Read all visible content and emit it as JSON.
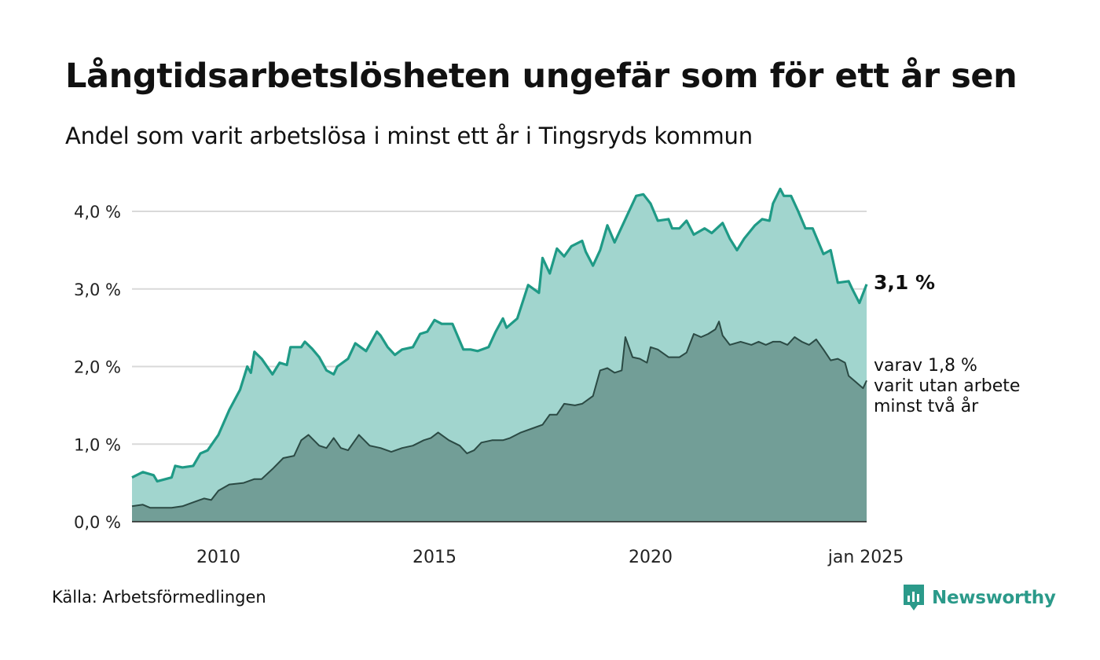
{
  "header": {
    "title": "Långtidsarbetslösheten ungefär som för ett år sen",
    "subtitle": "Andel som varit arbetslösa i minst ett år i Tingsryds kommun"
  },
  "footer": {
    "source": "Källa: Arbetsförmedlingen",
    "brand": "Newsworthy"
  },
  "colors": {
    "line_top": "#1f9a86",
    "area_top": "#a1d5ce",
    "line_bottom": "#2b4a44",
    "area_bottom": "#729e97",
    "grid": "#d9d9d9",
    "brand": "#2b9a8a"
  },
  "chart_data": {
    "type": "area",
    "xlim": [
      "2008-01",
      "2025-01"
    ],
    "ylim": [
      0,
      4.0
    ],
    "y_ticks": [
      "0,0 %",
      "1,0 %",
      "2,0 %",
      "3,0 %",
      "4,0 %"
    ],
    "x_ticks": [
      "2010",
      "2015",
      "2020",
      "jan 2025"
    ],
    "grid": true,
    "end_labels": {
      "top": "3,1 %",
      "bottom": [
        "varav 1,8 %",
        "varit utan arbete",
        "minst två år"
      ]
    },
    "series": [
      {
        "points": [
          [
            "2008-01",
            0.57
          ],
          [
            "2008-04",
            0.64
          ],
          [
            "2008-07",
            0.6
          ],
          [
            "2008-08",
            0.52
          ],
          [
            "2008-12",
            0.57
          ],
          [
            "2009-01",
            0.72
          ],
          [
            "2009-03",
            0.7
          ],
          [
            "2009-06",
            0.72
          ],
          [
            "2009-08",
            0.88
          ],
          [
            "2009-10",
            0.92
          ],
          [
            "2010-01",
            1.12
          ],
          [
            "2010-04",
            1.44
          ],
          [
            "2010-07",
            1.7
          ],
          [
            "2010-09",
            2.0
          ],
          [
            "2010-10",
            1.92
          ],
          [
            "2010-11",
            2.19
          ],
          [
            "2011-01",
            2.1
          ],
          [
            "2011-04",
            1.9
          ],
          [
            "2011-06",
            2.05
          ],
          [
            "2011-08",
            2.02
          ],
          [
            "2011-09",
            2.25
          ],
          [
            "2011-12",
            2.25
          ],
          [
            "2012-01",
            2.32
          ],
          [
            "2012-03",
            2.23
          ],
          [
            "2012-05",
            2.12
          ],
          [
            "2012-07",
            1.95
          ],
          [
            "2012-09",
            1.9
          ],
          [
            "2012-10",
            2.0
          ],
          [
            "2013-01",
            2.1
          ],
          [
            "2013-03",
            2.3
          ],
          [
            "2013-06",
            2.2
          ],
          [
            "2013-09",
            2.45
          ],
          [
            "2013-10",
            2.4
          ],
          [
            "2013-12",
            2.25
          ],
          [
            "2014-02",
            2.15
          ],
          [
            "2014-04",
            2.22
          ],
          [
            "2014-07",
            2.25
          ],
          [
            "2014-09",
            2.42
          ],
          [
            "2014-11",
            2.45
          ],
          [
            "2015-01",
            2.6
          ],
          [
            "2015-03",
            2.55
          ],
          [
            "2015-06",
            2.55
          ],
          [
            "2015-09",
            2.22
          ],
          [
            "2015-11",
            2.22
          ],
          [
            "2016-01",
            2.2
          ],
          [
            "2016-04",
            2.25
          ],
          [
            "2016-06",
            2.45
          ],
          [
            "2016-08",
            2.62
          ],
          [
            "2016-09",
            2.5
          ],
          [
            "2016-12",
            2.62
          ],
          [
            "2017-03",
            3.05
          ],
          [
            "2017-06",
            2.95
          ],
          [
            "2017-07",
            3.4
          ],
          [
            "2017-09",
            3.2
          ],
          [
            "2017-11",
            3.52
          ],
          [
            "2018-01",
            3.42
          ],
          [
            "2018-03",
            3.55
          ],
          [
            "2018-06",
            3.62
          ],
          [
            "2018-07",
            3.48
          ],
          [
            "2018-09",
            3.3
          ],
          [
            "2018-11",
            3.5
          ],
          [
            "2019-01",
            3.82
          ],
          [
            "2019-03",
            3.6
          ],
          [
            "2019-06",
            3.9
          ],
          [
            "2019-09",
            4.2
          ],
          [
            "2019-11",
            4.22
          ],
          [
            "2020-01",
            4.1
          ],
          [
            "2020-03",
            3.88
          ],
          [
            "2020-06",
            3.9
          ],
          [
            "2020-07",
            3.78
          ],
          [
            "2020-09",
            3.78
          ],
          [
            "2020-11",
            3.88
          ],
          [
            "2021-01",
            3.7
          ],
          [
            "2021-04",
            3.78
          ],
          [
            "2021-06",
            3.72
          ],
          [
            "2021-09",
            3.85
          ],
          [
            "2021-11",
            3.65
          ],
          [
            "2022-01",
            3.5
          ],
          [
            "2022-03",
            3.65
          ],
          [
            "2022-06",
            3.82
          ],
          [
            "2022-08",
            3.9
          ],
          [
            "2022-10",
            3.88
          ],
          [
            "2022-11",
            4.1
          ],
          [
            "2023-01",
            4.29
          ],
          [
            "2023-02",
            4.2
          ],
          [
            "2023-04",
            4.2
          ],
          [
            "2023-06",
            4.0
          ],
          [
            "2023-08",
            3.78
          ],
          [
            "2023-10",
            3.78
          ],
          [
            "2024-01",
            3.45
          ],
          [
            "2024-03",
            3.5
          ],
          [
            "2024-05",
            3.08
          ],
          [
            "2024-08",
            3.1
          ],
          [
            "2024-09",
            3.0
          ],
          [
            "2024-11",
            2.82
          ],
          [
            "2025-01",
            3.06
          ]
        ]
      },
      {
        "points": [
          [
            "2008-01",
            0.2
          ],
          [
            "2008-04",
            0.22
          ],
          [
            "2008-06",
            0.18
          ],
          [
            "2008-12",
            0.18
          ],
          [
            "2009-03",
            0.2
          ],
          [
            "2009-06",
            0.25
          ],
          [
            "2009-09",
            0.3
          ],
          [
            "2009-11",
            0.28
          ],
          [
            "2010-01",
            0.4
          ],
          [
            "2010-04",
            0.48
          ],
          [
            "2010-08",
            0.5
          ],
          [
            "2010-11",
            0.55
          ],
          [
            "2011-01",
            0.55
          ],
          [
            "2011-04",
            0.68
          ],
          [
            "2011-07",
            0.82
          ],
          [
            "2011-10",
            0.85
          ],
          [
            "2011-12",
            1.05
          ],
          [
            "2012-02",
            1.12
          ],
          [
            "2012-05",
            0.98
          ],
          [
            "2012-07",
            0.95
          ],
          [
            "2012-09",
            1.08
          ],
          [
            "2012-11",
            0.95
          ],
          [
            "2013-01",
            0.92
          ],
          [
            "2013-04",
            1.12
          ],
          [
            "2013-07",
            0.98
          ],
          [
            "2013-10",
            0.95
          ],
          [
            "2014-01",
            0.9
          ],
          [
            "2014-04",
            0.95
          ],
          [
            "2014-07",
            0.98
          ],
          [
            "2014-10",
            1.05
          ],
          [
            "2014-12",
            1.08
          ],
          [
            "2015-02",
            1.15
          ],
          [
            "2015-05",
            1.05
          ],
          [
            "2015-08",
            0.98
          ],
          [
            "2015-10",
            0.88
          ],
          [
            "2015-12",
            0.92
          ],
          [
            "2016-02",
            1.02
          ],
          [
            "2016-05",
            1.05
          ],
          [
            "2016-08",
            1.05
          ],
          [
            "2016-10",
            1.08
          ],
          [
            "2017-01",
            1.15
          ],
          [
            "2017-04",
            1.2
          ],
          [
            "2017-07",
            1.25
          ],
          [
            "2017-09",
            1.38
          ],
          [
            "2017-11",
            1.38
          ],
          [
            "2018-01",
            1.52
          ],
          [
            "2018-04",
            1.5
          ],
          [
            "2018-06",
            1.52
          ],
          [
            "2018-09",
            1.62
          ],
          [
            "2018-11",
            1.95
          ],
          [
            "2019-01",
            1.98
          ],
          [
            "2019-03",
            1.92
          ],
          [
            "2019-05",
            1.95
          ],
          [
            "2019-06",
            2.38
          ],
          [
            "2019-08",
            2.12
          ],
          [
            "2019-10",
            2.1
          ],
          [
            "2019-12",
            2.05
          ],
          [
            "2020-01",
            2.25
          ],
          [
            "2020-03",
            2.22
          ],
          [
            "2020-06",
            2.12
          ],
          [
            "2020-09",
            2.12
          ],
          [
            "2020-11",
            2.18
          ],
          [
            "2021-01",
            2.42
          ],
          [
            "2021-03",
            2.38
          ],
          [
            "2021-05",
            2.42
          ],
          [
            "2021-07",
            2.48
          ],
          [
            "2021-08",
            2.58
          ],
          [
            "2021-09",
            2.4
          ],
          [
            "2021-11",
            2.28
          ],
          [
            "2022-02",
            2.32
          ],
          [
            "2022-05",
            2.28
          ],
          [
            "2022-07",
            2.32
          ],
          [
            "2022-09",
            2.28
          ],
          [
            "2022-11",
            2.32
          ],
          [
            "2023-01",
            2.32
          ],
          [
            "2023-03",
            2.28
          ],
          [
            "2023-05",
            2.38
          ],
          [
            "2023-07",
            2.32
          ],
          [
            "2023-09",
            2.28
          ],
          [
            "2023-11",
            2.35
          ],
          [
            "2024-01",
            2.22
          ],
          [
            "2024-03",
            2.08
          ],
          [
            "2024-05",
            2.1
          ],
          [
            "2024-07",
            2.05
          ],
          [
            "2024-08",
            1.88
          ],
          [
            "2024-10",
            1.8
          ],
          [
            "2024-12",
            1.72
          ],
          [
            "2025-01",
            1.82
          ]
        ]
      }
    ]
  }
}
